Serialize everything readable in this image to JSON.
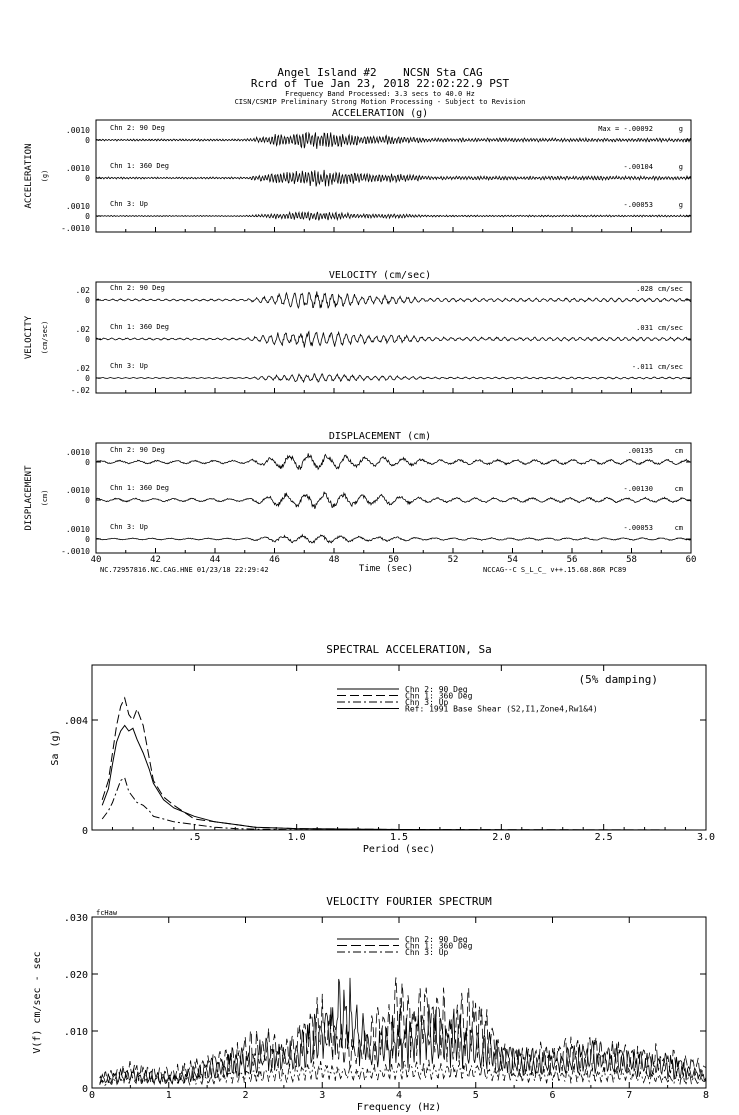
{
  "header": {
    "line1": "Angel Island #2    NCSN Sta CAG",
    "line2": "Rcrd of Tue Jan 23, 2018 22:02:22.9 PST",
    "line3": "Frequency Band Processed: 3.3 secs to 40.0 Hz",
    "line4": "CISN/CSMIP Preliminary Strong Motion Processing - Subject to Revision"
  },
  "footer": {
    "left": "NC.72957816.NC.CAG.HNE 01/23/18 22:29:42",
    "right": "NCCAG--C  S_L_C_  v++.15.68.86R PC89"
  },
  "chart_data": [
    {
      "type": "line",
      "title": "ACCELERATION (g)",
      "ylabel": "ACCELERATION",
      "yunit": "(g)",
      "xlim": [
        40,
        60
      ],
      "tick_labels": [
        ".0010",
        "0",
        "-.0010"
      ],
      "series": [
        {
          "name": "Chn 2: 90 Deg",
          "peak_label": "Max = -.00092",
          "peak": -0.00092,
          "unit": "g",
          "ylim": [
            -0.001,
            0.001
          ]
        },
        {
          "name": "Chn 1: 360 Deg",
          "peak_label": "-.00104",
          "peak": -0.00104,
          "unit": "g",
          "ylim": [
            -0.001,
            0.001
          ]
        },
        {
          "name": "Chn 3: Up",
          "peak_label": "-.00053",
          "peak": -0.00053,
          "unit": "g",
          "ylim": [
            -0.001,
            0.001
          ]
        }
      ]
    },
    {
      "type": "line",
      "title": "VELOCITY (cm/sec)",
      "ylabel": "VELOCITY",
      "yunit": "(cm/sec)",
      "xlim": [
        40,
        60
      ],
      "tick_labels": [
        ".02",
        "0",
        "-.02"
      ],
      "series": [
        {
          "name": "Chn 2: 90 Deg",
          "peak_label": ".028",
          "peak": 0.028,
          "unit": "cm/sec",
          "ylim": [
            -0.02,
            0.02
          ]
        },
        {
          "name": "Chn 1: 360 Deg",
          "peak_label": ".031",
          "peak": 0.031,
          "unit": "cm/sec",
          "ylim": [
            -0.02,
            0.02
          ]
        },
        {
          "name": "Chn 3: Up",
          "peak_label": "-.011",
          "peak": -0.011,
          "unit": "cm/sec",
          "ylim": [
            -0.02,
            0.02
          ]
        }
      ]
    },
    {
      "type": "line",
      "title": "DISPLACEMENT (cm)",
      "ylabel": "DISPLACEMENT",
      "yunit": "(cm)",
      "xlabel": "Time (sec)",
      "xlim": [
        40,
        60
      ],
      "xticks": [
        "40",
        "42",
        "44",
        "46",
        "48",
        "50",
        "52",
        "54",
        "56",
        "58",
        "60"
      ],
      "tick_labels": [
        ".0010",
        "0",
        "-.0010"
      ],
      "series": [
        {
          "name": "Chn 2: 90 Deg",
          "peak_label": ".00135",
          "peak": 0.00135,
          "unit": "cm",
          "ylim": [
            -0.001,
            0.001
          ]
        },
        {
          "name": "Chn 1: 360 Deg",
          "peak_label": "-.00130",
          "peak": -0.0013,
          "unit": "cm",
          "ylim": [
            -0.001,
            0.001
          ]
        },
        {
          "name": "Chn 3: Up",
          "peak_label": "-.00053",
          "peak": -0.00053,
          "unit": "cm",
          "ylim": [
            -0.001,
            0.001
          ]
        }
      ]
    },
    {
      "type": "line",
      "title": "SPECTRAL ACCELERATION, Sa",
      "annotation": "(5% damping)",
      "xlabel": "Period (sec)",
      "ylabel": "Sa (g)",
      "xlim": [
        0,
        3.0
      ],
      "ylim": [
        0,
        0.006
      ],
      "xticks": [
        ".5",
        "1.0",
        "1.5",
        "2.0",
        "2.5",
        "3.0"
      ],
      "yticks": [
        "0",
        ".004"
      ],
      "series": [
        {
          "name": "Chn 2: 90 Deg",
          "dash": "",
          "x": [
            0.05,
            0.08,
            0.1,
            0.12,
            0.14,
            0.16,
            0.18,
            0.2,
            0.22,
            0.25,
            0.28,
            0.3,
            0.35,
            0.4,
            0.5,
            0.6,
            0.7,
            0.8,
            1.0,
            1.5,
            2.0,
            3.0
          ],
          "y": [
            0.0009,
            0.0015,
            0.0024,
            0.0032,
            0.0036,
            0.0038,
            0.0036,
            0.0037,
            0.0033,
            0.0028,
            0.0022,
            0.0017,
            0.0011,
            0.0008,
            0.0005,
            0.0003,
            0.0002,
            0.0001,
            5e-05,
            2e-05,
            1e-05,
            0.0
          ]
        },
        {
          "name": "Chn 1: 360 Deg",
          "dash": "9,4",
          "x": [
            0.05,
            0.08,
            0.1,
            0.12,
            0.14,
            0.16,
            0.18,
            0.2,
            0.22,
            0.25,
            0.28,
            0.3,
            0.35,
            0.4,
            0.5,
            0.6,
            0.7,
            0.8,
            1.0,
            1.5,
            2.0,
            3.0
          ],
          "y": [
            0.0011,
            0.0018,
            0.0028,
            0.0038,
            0.0045,
            0.0048,
            0.0042,
            0.004,
            0.0044,
            0.0038,
            0.0026,
            0.0018,
            0.0012,
            0.0009,
            0.0004,
            0.0003,
            0.0002,
            0.0001,
            5e-05,
            2e-05,
            1e-05,
            0.0
          ]
        },
        {
          "name": "Chn 3: Up",
          "dash": "8,3,2,3",
          "x": [
            0.05,
            0.08,
            0.1,
            0.12,
            0.14,
            0.16,
            0.18,
            0.2,
            0.22,
            0.25,
            0.28,
            0.3,
            0.35,
            0.4,
            0.5,
            0.6,
            0.7,
            0.8,
            1.0,
            1.5,
            2.0,
            3.0
          ],
          "y": [
            0.0004,
            0.0007,
            0.001,
            0.0014,
            0.0018,
            0.0019,
            0.0014,
            0.0012,
            0.001,
            0.0009,
            0.0007,
            0.0005,
            0.0004,
            0.0003,
            0.0002,
            0.0001,
            5e-05,
            3e-05,
            1e-05,
            0.0,
            0.0,
            0.0
          ]
        },
        {
          "name": "Ref: 1991 Base Shear (S2,I1,Zone4,Rw1&4)",
          "dash": "",
          "x": [],
          "y": []
        }
      ]
    },
    {
      "type": "line",
      "title": "VELOCITY FOURIER SPECTRUM",
      "corner_label": "fcHaw",
      "xlabel": "Frequency (Hz)",
      "ylabel": "V(f)   cm/sec - sec",
      "xlim": [
        0,
        8
      ],
      "ylim": [
        0,
        0.03
      ],
      "xticks": [
        "0",
        "1",
        "2",
        "3",
        "4",
        "5",
        "6",
        "7",
        "8"
      ],
      "yticks": [
        "0",
        ".010",
        ".020",
        ".030"
      ],
      "series": [
        {
          "name": "Chn 2: 90 Deg",
          "dash": "",
          "x": [
            0.1,
            0.5,
            1.0,
            1.5,
            2.0,
            2.3,
            2.6,
            3.0,
            3.2,
            3.3,
            3.6,
            4.0,
            4.3,
            4.6,
            5.0,
            5.3,
            5.6,
            6.0,
            6.5,
            7.0,
            7.5,
            8.0
          ],
          "y": [
            0.002,
            0.003,
            0.002,
            0.004,
            0.006,
            0.008,
            0.007,
            0.012,
            0.016,
            0.018,
            0.009,
            0.011,
            0.013,
            0.012,
            0.01,
            0.007,
            0.006,
            0.006,
            0.007,
            0.006,
            0.005,
            0.003
          ]
        },
        {
          "name": "Chn 1: 360 Deg",
          "dash": "10,4",
          "x": [
            0.1,
            0.5,
            1.0,
            1.5,
            2.0,
            2.3,
            2.6,
            3.0,
            3.2,
            3.5,
            3.8,
            4.0,
            4.4,
            4.7,
            5.0,
            5.3,
            5.6,
            6.0,
            6.5,
            7.0,
            7.5,
            8.0
          ],
          "y": [
            0.002,
            0.004,
            0.003,
            0.005,
            0.008,
            0.009,
            0.008,
            0.015,
            0.01,
            0.009,
            0.014,
            0.016,
            0.017,
            0.013,
            0.015,
            0.008,
            0.006,
            0.007,
            0.008,
            0.007,
            0.006,
            0.004
          ]
        },
        {
          "name": "Chn 3: Up",
          "dash": "8,3,2,3",
          "x": [
            0.1,
            0.5,
            1.0,
            1.5,
            2.0,
            2.5,
            3.0,
            3.5,
            4.0,
            4.5,
            5.0,
            5.5,
            6.0,
            6.5,
            7.0,
            7.5,
            8.0
          ],
          "y": [
            0.001,
            0.002,
            0.002,
            0.002,
            0.003,
            0.003,
            0.004,
            0.003,
            0.004,
            0.004,
            0.004,
            0.003,
            0.003,
            0.003,
            0.003,
            0.002,
            0.002
          ]
        }
      ]
    }
  ]
}
